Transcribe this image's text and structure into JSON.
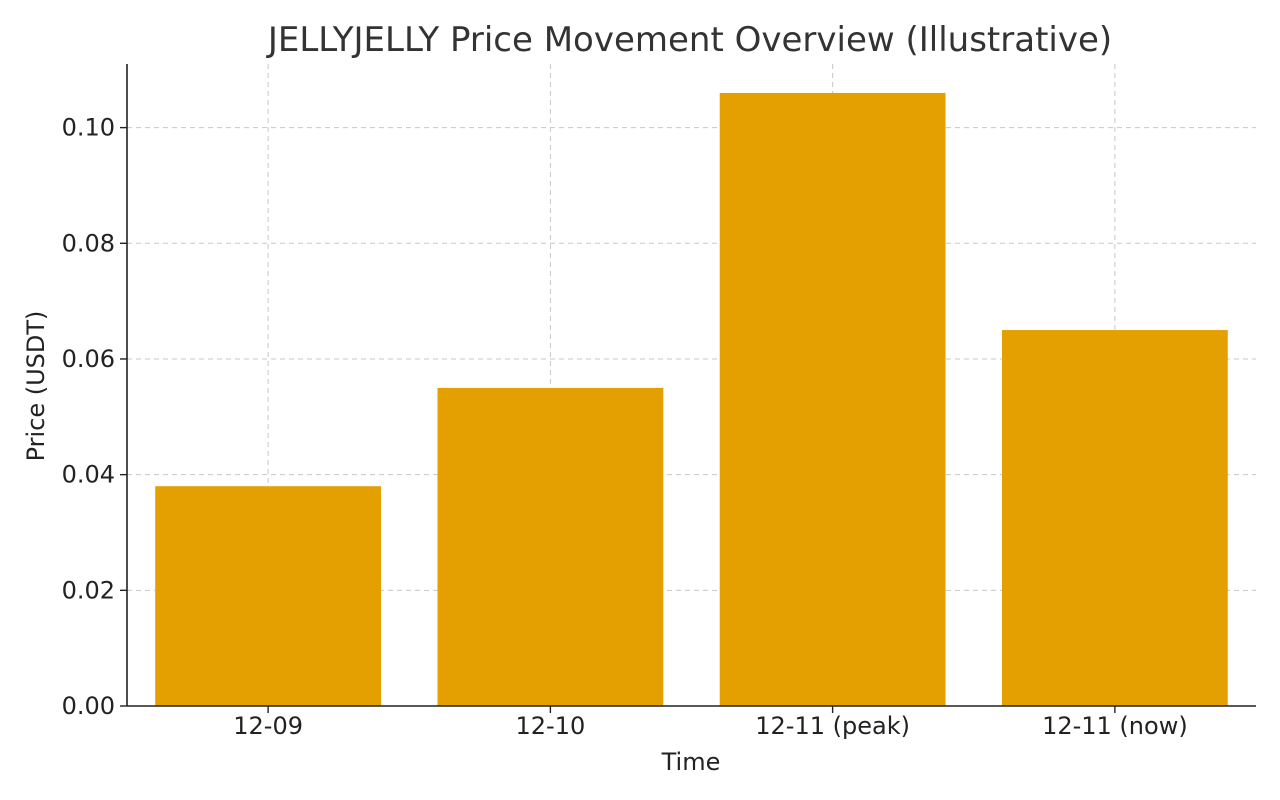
{
  "chart_data": {
    "type": "bar",
    "title": "JELLYJELLY Price Movement Overview (Illustrative)",
    "xlabel": "Time",
    "ylabel": "Price (USDT)",
    "categories": [
      "12-09",
      "12-10",
      "12-11 (peak)",
      "12-11 (now)"
    ],
    "values": [
      0.038,
      0.055,
      0.106,
      0.065
    ],
    "ylim": [
      0,
      0.111
    ],
    "yticks": [
      0.0,
      0.02,
      0.04,
      0.06,
      0.08,
      0.1
    ],
    "ytick_labels": [
      "0.00",
      "0.02",
      "0.04",
      "0.06",
      "0.08",
      "0.10"
    ],
    "grid": true,
    "bar_color": "#E3A000"
  }
}
